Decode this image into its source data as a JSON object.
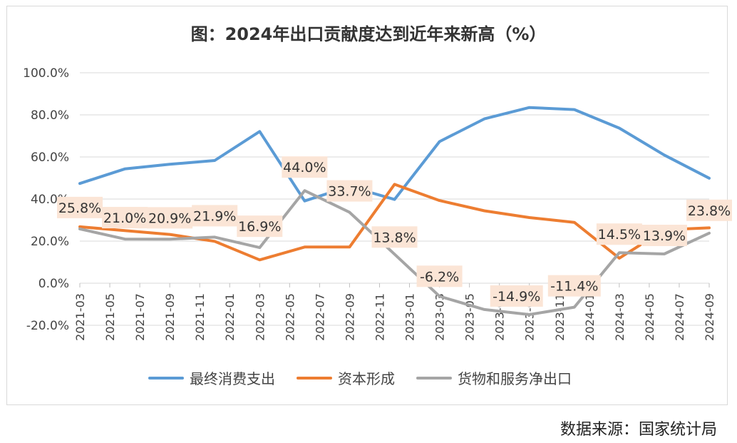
{
  "source_note": "数据来源：国家统计局",
  "chart_data": {
    "type": "line",
    "title": "图：2024年出口贡献度达到近年来新高（%）",
    "xlabel": "",
    "ylabel": "",
    "ylim": [
      -20,
      100
    ],
    "yticks": [
      "100.0%",
      "80.0%",
      "60.0%",
      "40.0%",
      "20.0%",
      "0.0%",
      "-20.0%"
    ],
    "ytick_values": [
      100,
      80,
      60,
      40,
      20,
      0,
      -20
    ],
    "grid": true,
    "legend_position": "bottom",
    "categories": [
      "2021-03",
      "2021-05",
      "2021-07",
      "2021-09",
      "2021-11",
      "2022-01",
      "2022-03",
      "2022-05",
      "2022-07",
      "2022-09",
      "2022-11",
      "2023-01",
      "2023-03",
      "2023-05",
      "2023-07",
      "2023-09",
      "2023-11",
      "2024-01",
      "2024-03",
      "2024-05",
      "2024-07",
      "2024-09"
    ],
    "series": [
      {
        "name": "最终消费支出",
        "color": "#5b9bd5",
        "points": [
          [
            "2021-03",
            47.4
          ],
          [
            "2021-06",
            54.3
          ],
          [
            "2021-09",
            56.5
          ],
          [
            "2021-12",
            58.3
          ],
          [
            "2022-03",
            72.1
          ],
          [
            "2022-06",
            39.1
          ],
          [
            "2022-09",
            46.0
          ],
          [
            "2022-12",
            39.8
          ],
          [
            "2023-03",
            67.3
          ],
          [
            "2023-06",
            78.1
          ],
          [
            "2023-09",
            83.5
          ],
          [
            "2023-12",
            82.5
          ],
          [
            "2024-03",
            73.7
          ],
          [
            "2024-06",
            60.9
          ],
          [
            "2024-09",
            49.9
          ]
        ]
      },
      {
        "name": "资本形成",
        "color": "#ed7d31",
        "points": [
          [
            "2021-03",
            26.8
          ],
          [
            "2021-06",
            25.0
          ],
          [
            "2021-09",
            23.2
          ],
          [
            "2021-12",
            19.9
          ],
          [
            "2022-03",
            11.1
          ],
          [
            "2022-06",
            17.2
          ],
          [
            "2022-09",
            17.2
          ],
          [
            "2022-12",
            47.0
          ],
          [
            "2023-03",
            39.3
          ],
          [
            "2023-06",
            34.4
          ],
          [
            "2023-09",
            31.2
          ],
          [
            "2023-12",
            28.9
          ],
          [
            "2024-03",
            11.9
          ],
          [
            "2024-06",
            25.4
          ],
          [
            "2024-09",
            26.3
          ]
        ]
      },
      {
        "name": "货物和服务净出口",
        "color": "#a5a5a5",
        "points": [
          [
            "2021-03",
            25.8
          ],
          [
            "2021-06",
            21.0
          ],
          [
            "2021-09",
            20.9
          ],
          [
            "2021-12",
            21.9
          ],
          [
            "2022-03",
            16.9
          ],
          [
            "2022-06",
            44.0
          ],
          [
            "2022-09",
            33.7
          ],
          [
            "2022-12",
            13.8
          ],
          [
            "2023-03",
            -6.2
          ],
          [
            "2023-06",
            -12.5
          ],
          [
            "2023-09",
            -14.9
          ],
          [
            "2023-12",
            -11.4
          ],
          [
            "2024-03",
            14.5
          ],
          [
            "2024-06",
            13.9
          ],
          [
            "2024-09",
            23.8
          ]
        ],
        "labels": [
          {
            "x": "2021-03",
            "text": "25.8%"
          },
          {
            "x": "2021-06",
            "text": "21.0%"
          },
          {
            "x": "2021-09",
            "text": "20.9%"
          },
          {
            "x": "2021-12",
            "text": "21.9%"
          },
          {
            "x": "2022-03",
            "text": "16.9%"
          },
          {
            "x": "2022-06",
            "text": "44.0%"
          },
          {
            "x": "2022-09",
            "text": "33.7%"
          },
          {
            "x": "2022-12",
            "text": "13.8%"
          },
          {
            "x": "2023-03",
            "text": "-6.2%"
          },
          {
            "x": "2023-09",
            "text": "-14.9%"
          },
          {
            "x": "2023-12",
            "text": "-11.4%"
          },
          {
            "x": "2024-03",
            "text": "14.5%"
          },
          {
            "x": "2024-06",
            "text": "13.9%"
          },
          {
            "x": "2024-09",
            "text": "23.8%"
          }
        ]
      }
    ]
  }
}
